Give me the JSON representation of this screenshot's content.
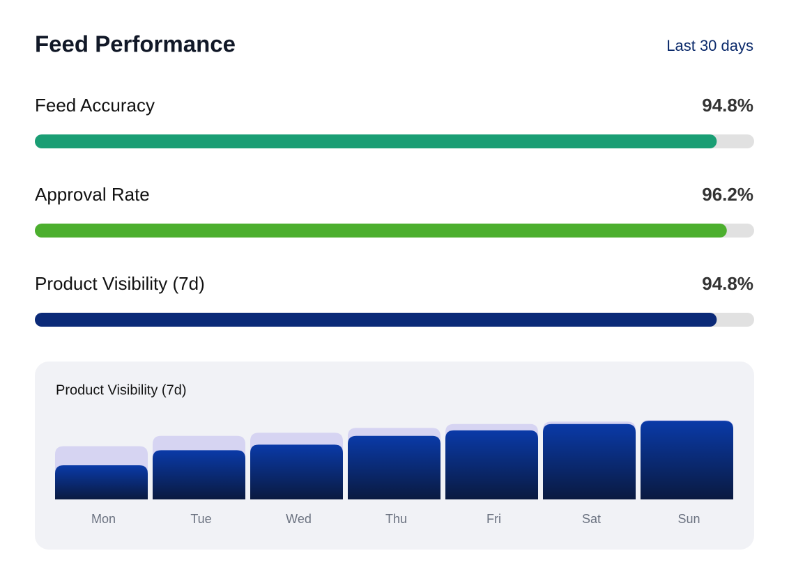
{
  "header": {
    "title": "Feed Performance",
    "period": "Last 30 days"
  },
  "metrics": [
    {
      "label": "Feed Accuracy",
      "value": 94.8,
      "value_label": "94.8%",
      "color": "#1a9e74"
    },
    {
      "label": "Approval Rate",
      "value": 96.2,
      "value_label": "96.2%",
      "color": "#4caf2e"
    },
    {
      "label": "Product Visibility (7d)",
      "value": 94.8,
      "value_label": "94.8%",
      "color": "#0b2a78"
    }
  ],
  "metrics_scale": [
    0,
    100
  ],
  "chart_data": {
    "type": "bar",
    "title": "Product Visibility (7d)",
    "categories": [
      "Mon",
      "Tue",
      "Wed",
      "Thu",
      "Fri",
      "Sat",
      "Sun"
    ],
    "series": [
      {
        "color": "#d6d4f2",
        "values": [
          67,
          80,
          84,
          90,
          95,
          98,
          100
        ]
      },
      {
        "color": "#0a3aa8",
        "values": [
          43,
          62,
          69,
          80,
          87,
          95,
          99
        ]
      }
    ],
    "ylim": [
      0,
      100
    ]
  }
}
